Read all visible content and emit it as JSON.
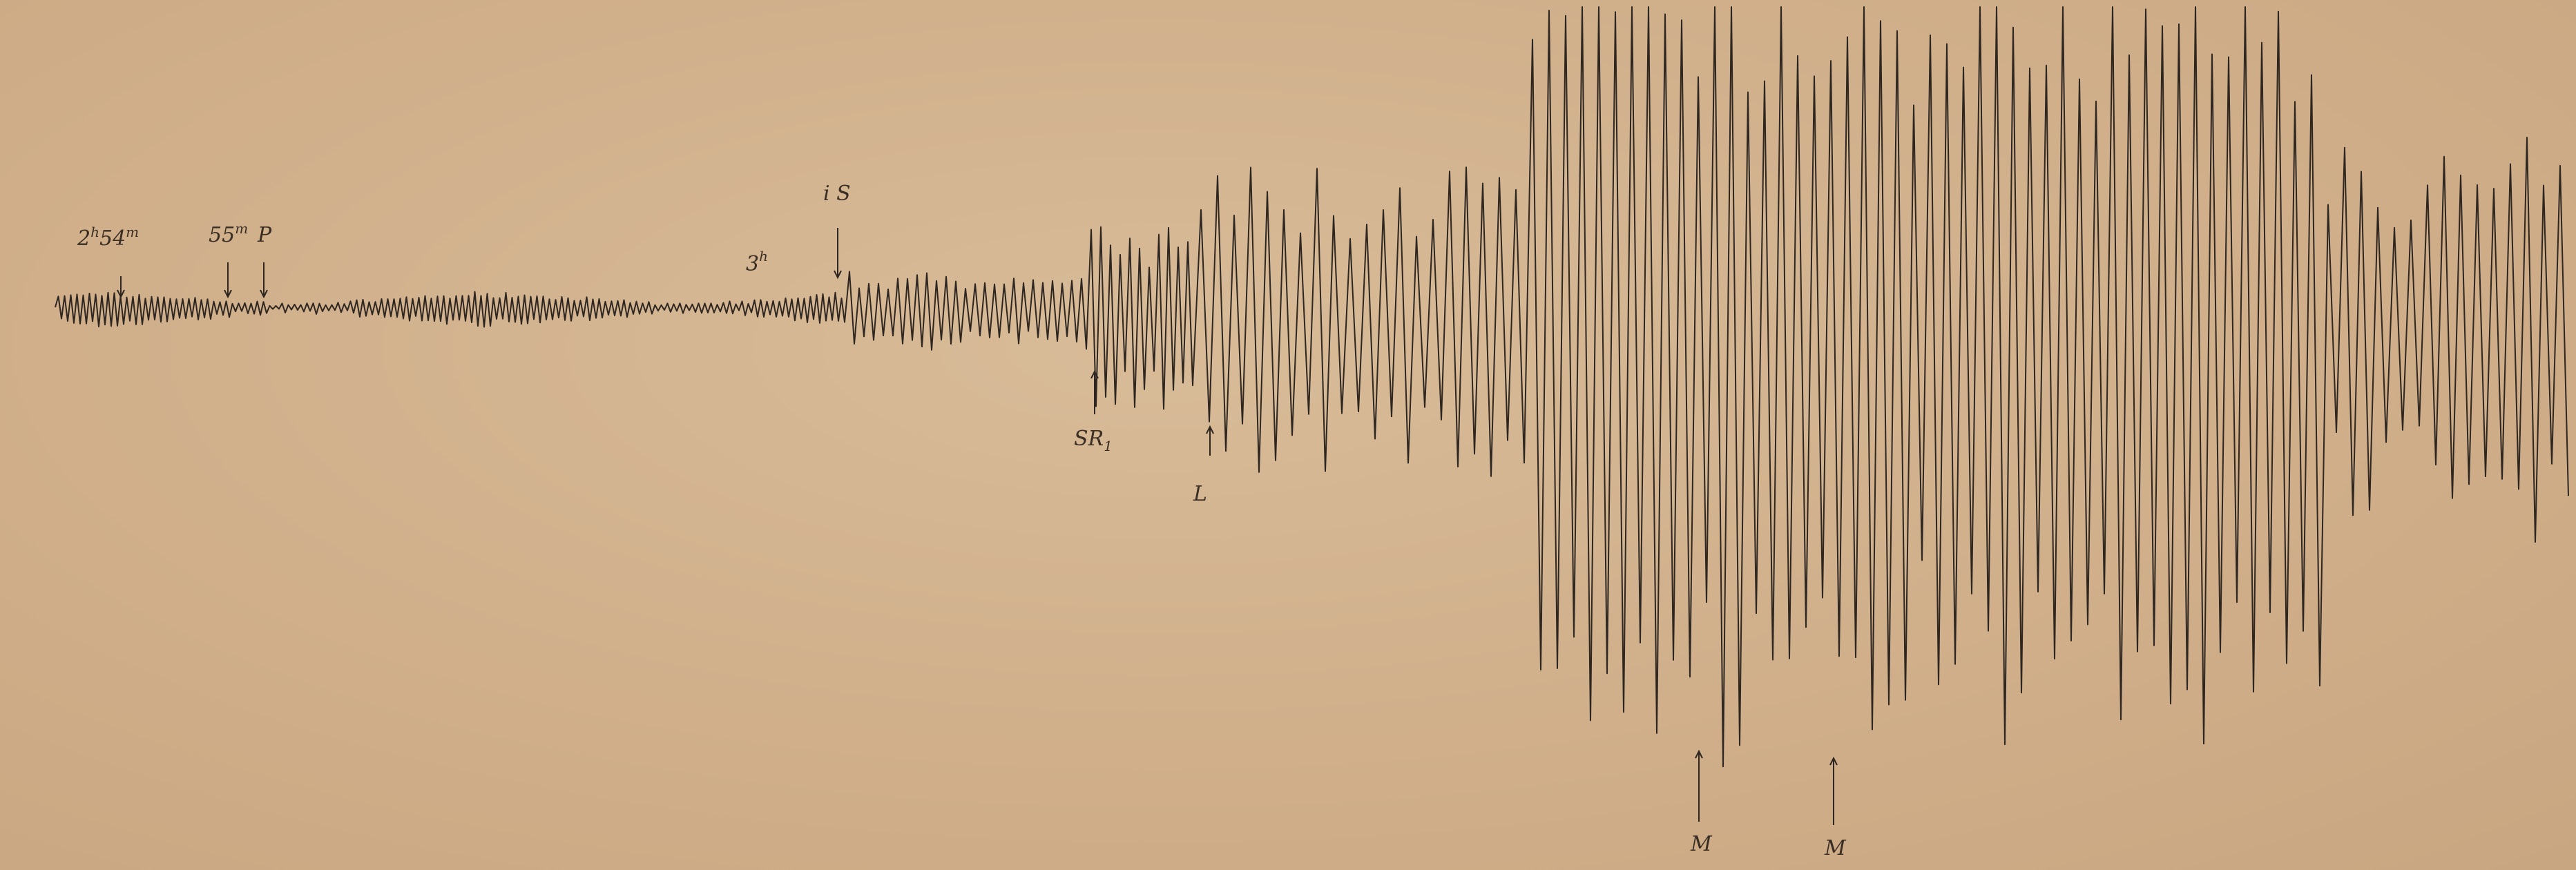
{
  "title": "",
  "annotations": {
    "t_254": {
      "main": "2",
      "sup1": "h",
      "mid": "54",
      "sup2": "m"
    },
    "t_55": {
      "main": "55",
      "sup": "m"
    },
    "p": "P",
    "t_3h": {
      "main": "3",
      "sup": "h"
    },
    "is": "i S",
    "sr1": "SR",
    "sr1_sub": "1",
    "l": "L",
    "m1": "M",
    "m2": "M"
  },
  "colors": {
    "paper": "#d3b38f",
    "ink": "#2e2620"
  }
}
